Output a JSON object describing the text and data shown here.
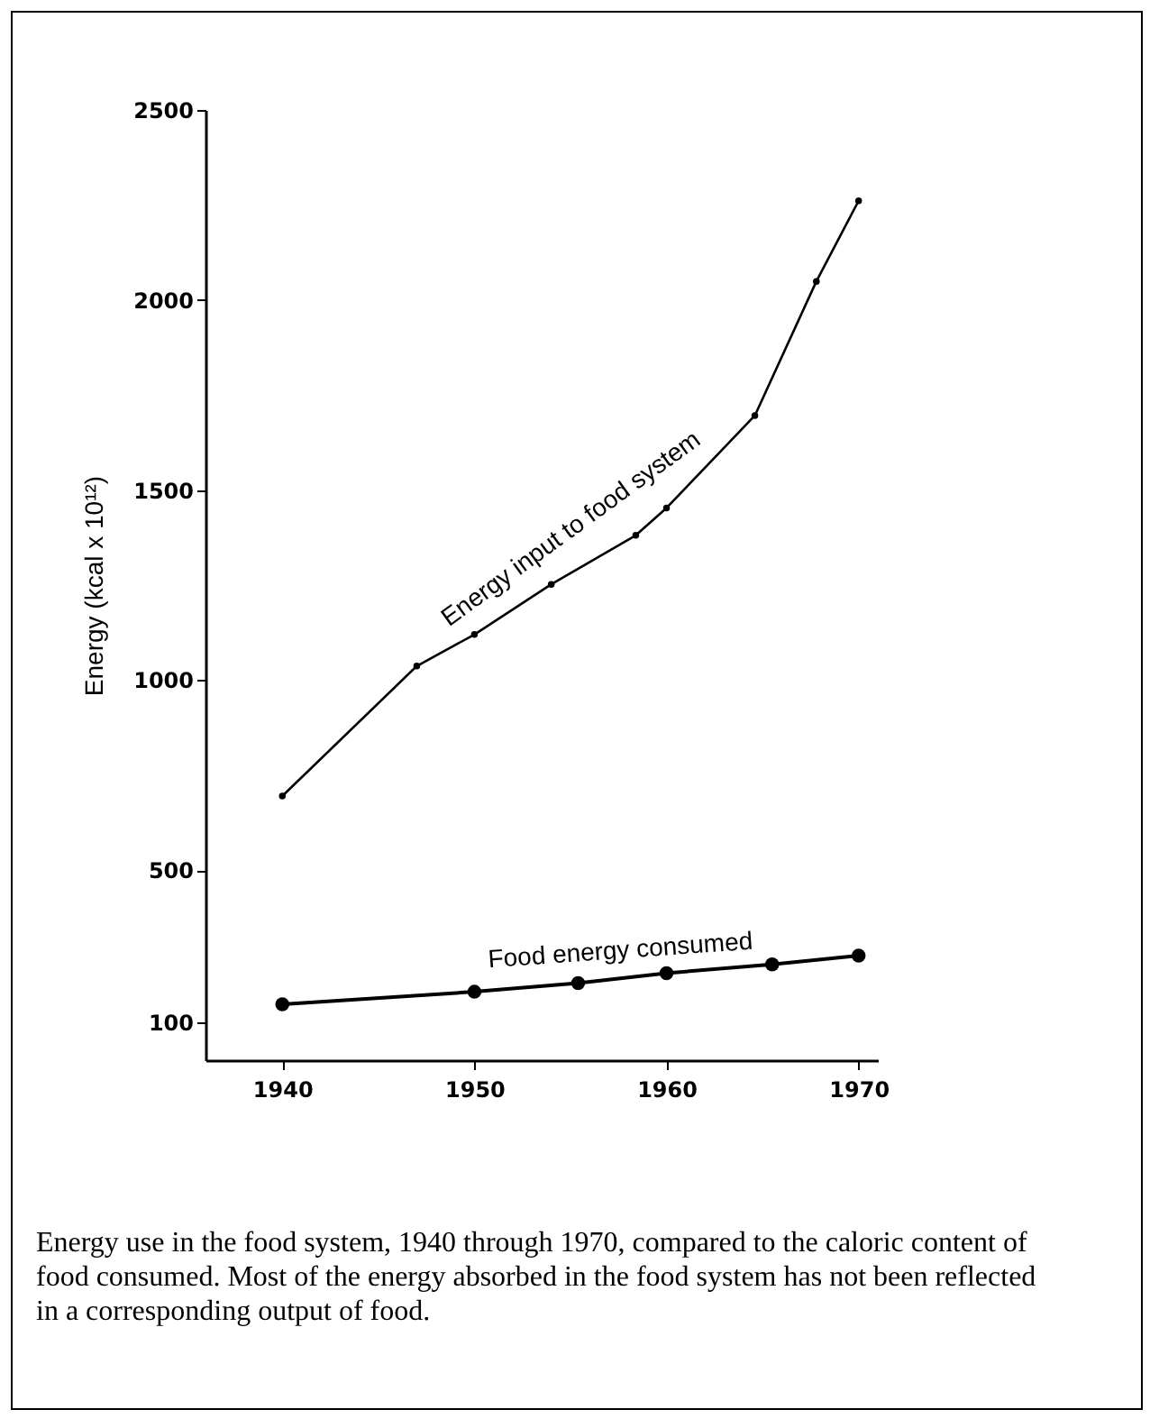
{
  "chart_data": {
    "type": "line",
    "ylabel": "Energy (kcal x 10¹²)",
    "xlim": [
      1936,
      1971
    ],
    "xticks": [
      1940,
      1950,
      1960,
      1970
    ],
    "ylim": [
      0,
      2500
    ],
    "yticks": [
      100,
      500,
      1000,
      1500,
      2000,
      2500
    ],
    "grid": false,
    "marker": "circle",
    "line_style": "solid",
    "series": [
      {
        "name": "Energy input to food system",
        "color": "#000000",
        "x": [
          1940,
          1947,
          1950,
          1954,
          1958.4,
          1960,
          1964.6,
          1967.8,
          1970
        ],
        "values": [
          695,
          1037,
          1120,
          1252,
          1381,
          1453,
          1696,
          2049,
          2261
        ]
      },
      {
        "name": "Food energy consumed",
        "color": "#000000",
        "x": [
          1940,
          1950,
          1955.4,
          1960,
          1965.5,
          1970
        ],
        "values": [
          147,
          180,
          203,
          229,
          252,
          275
        ]
      }
    ],
    "annotations": [
      "Energy use in the food system, 1940 through 1970, compared to the caloric content of food consumed. Most of the energy absorbed in the food system has not been reflected in a corresponding output of food."
    ]
  }
}
